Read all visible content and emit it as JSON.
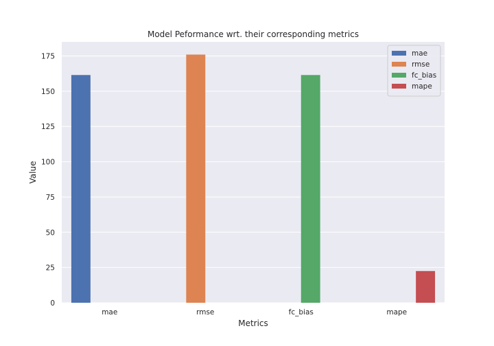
{
  "chart_data": {
    "type": "bar",
    "title": "Model Peformance wrt. their corresponding metrics",
    "xlabel": "Metrics",
    "ylabel": "Value",
    "categories": [
      "mae",
      "rmse",
      "fc_bias",
      "mape"
    ],
    "ylim": [
      0,
      185
    ],
    "yticks": [
      0,
      25,
      50,
      75,
      100,
      125,
      150,
      175
    ],
    "grid": true,
    "legend_position": "top-right",
    "series": [
      {
        "name": "mae",
        "color": "#4c72b0",
        "values": [
          161.5,
          null,
          null,
          null
        ]
      },
      {
        "name": "rmse",
        "color": "#dd8452",
        "values": [
          null,
          176,
          null,
          null
        ]
      },
      {
        "name": "fc_bias",
        "color": "#55a868",
        "values": [
          null,
          null,
          161.5,
          null
        ]
      },
      {
        "name": "mape",
        "color": "#c44e52",
        "values": [
          null,
          null,
          null,
          22.5
        ]
      }
    ]
  }
}
